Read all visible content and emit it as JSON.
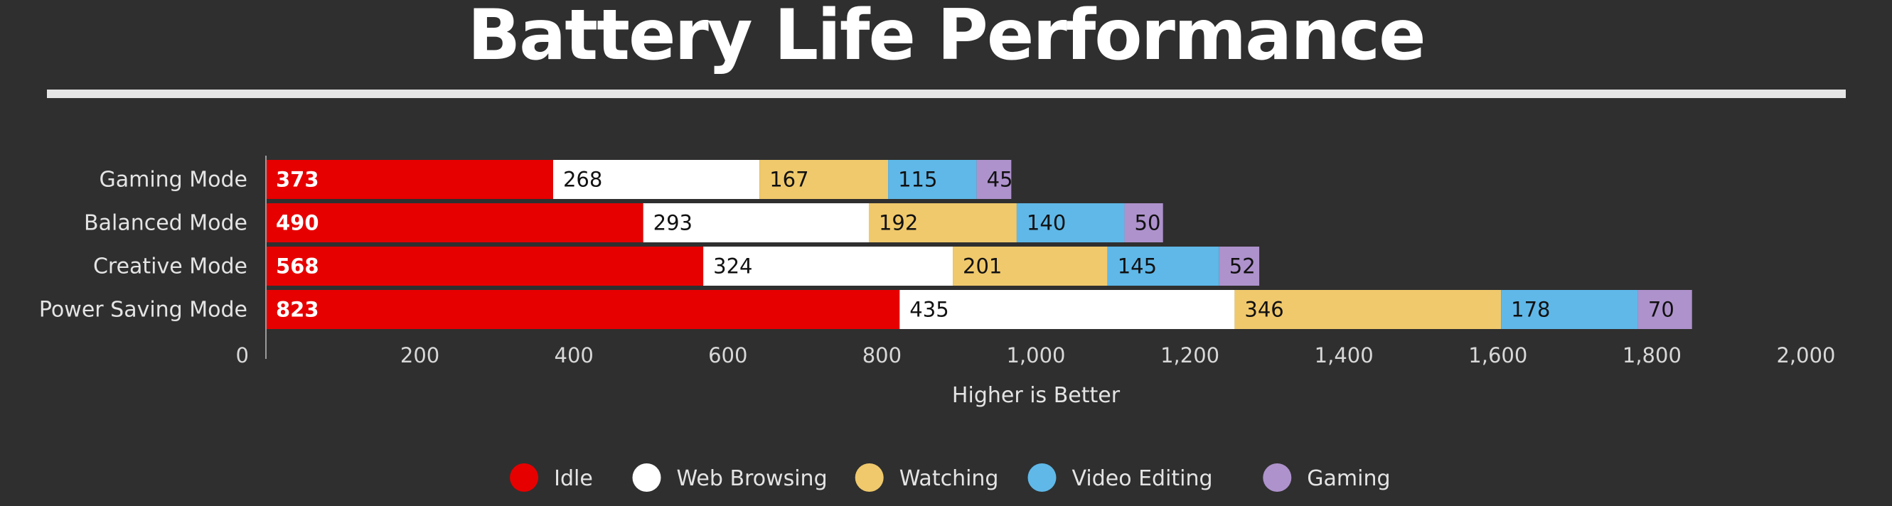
{
  "chart_data": {
    "type": "bar",
    "orientation": "horizontal",
    "stacked": true,
    "title": "Battery Life Performance",
    "xlabel": "Higher is Better",
    "ylabel": "",
    "xlim": [
      0,
      2000
    ],
    "x_ticks": [
      0,
      200,
      400,
      600,
      800,
      1000,
      1200,
      1400,
      1600,
      1800,
      2000
    ],
    "x_tick_labels": [
      "0",
      "200",
      "400",
      "600",
      "800",
      "1,000",
      "1,200",
      "1,400",
      "1,600",
      "1,800",
      "2,000"
    ],
    "categories": [
      "Gaming Mode",
      "Balanced Mode",
      "Creative Mode",
      "Power Saving Mode"
    ],
    "series": [
      {
        "name": "Idle",
        "values": [
          373,
          490,
          568,
          823
        ],
        "color": "#e60000",
        "label_color": "#ffffff"
      },
      {
        "name": "Web Browsing",
        "values": [
          268,
          293,
          324,
          435
        ],
        "color": "#ffffff",
        "label_color": "#111111"
      },
      {
        "name": "Watching",
        "values": [
          167,
          192,
          201,
          346
        ],
        "color": "#f0c96c",
        "label_color": "#111111"
      },
      {
        "name": "Video Editing",
        "values": [
          115,
          140,
          145,
          178
        ],
        "color": "#5fb8e8",
        "label_color": "#111111"
      },
      {
        "name": "Gaming",
        "values": [
          45,
          50,
          52,
          70
        ],
        "color": "#ae92cc",
        "label_color": "#111111"
      }
    ],
    "grid": false,
    "legend_position": "bottom-center"
  }
}
